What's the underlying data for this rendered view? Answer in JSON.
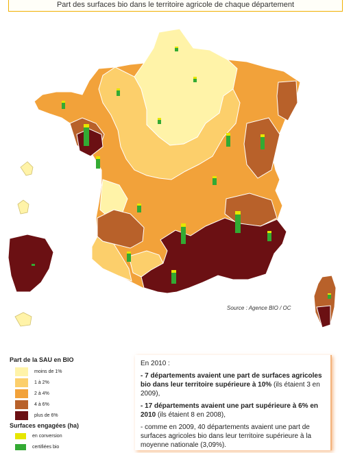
{
  "title": "Part des surfaces bio dans le territoire agricole de chaque département",
  "source": "Source : Agence BIO / OC",
  "legend": {
    "title": "Part de la SAU en BIO",
    "items": [
      {
        "label": "moins de 1%",
        "color": "#fff3a8"
      },
      {
        "label": "1 à 2%",
        "color": "#fccf6b"
      },
      {
        "label": "2 à 4%",
        "color": "#f2a23a"
      },
      {
        "label": "4 à 6%",
        "color": "#b8612a"
      },
      {
        "label": "plus de 6%",
        "color": "#6b1013"
      }
    ],
    "surfaces_title": "Surfaces engagées (ha)",
    "surfaces_items": [
      {
        "label": "en conversion",
        "color": "#e6e600"
      },
      {
        "label": "certifiées bio",
        "color": "#33aa33"
      }
    ]
  },
  "note": {
    "intro": "En 2010 :",
    "p1_bold": "- 7 départements avaient une part de surfaces agricoles bio dans leur territoire supérieure à 10%",
    "p1_rest": " (ils étaient 3 en 2009),",
    "p2_bold": "- 17 départements avaient une part supérieure à 6% en 2010",
    "p2_rest": " (ils étaient 8 en 2008),",
    "p3": "- comme en 2009, 40 départements avaient une part de surfaces agricoles bio dans leur territoire supérieure à la moyenne nationale (3,09%)."
  }
}
